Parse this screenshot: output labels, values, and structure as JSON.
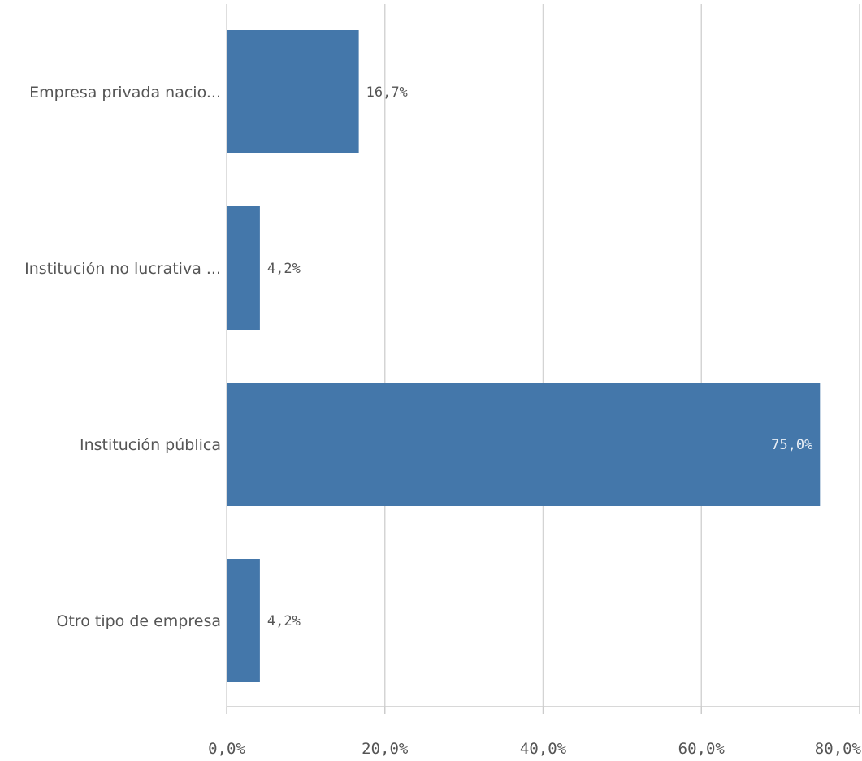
{
  "chart_data": {
    "type": "bar",
    "orientation": "horizontal",
    "categories": [
      "Empresa privada nacio...",
      "Institución no lucrativa ...",
      "Institución pública",
      "Otro tipo de empresa"
    ],
    "values": [
      16.7,
      4.2,
      75.0,
      4.2
    ],
    "data_labels": [
      "16,7%",
      "4,2%",
      "75,0%",
      "4,2%"
    ],
    "x_ticks": [
      0,
      20,
      40,
      60,
      80
    ],
    "x_tick_labels": [
      "0,0%",
      "20,0%",
      "40,0%",
      "60,0%",
      "80,0%"
    ],
    "xlim": [
      0,
      80
    ],
    "grid": true,
    "legend": "none",
    "colors": {
      "bar": "#4477aa",
      "grid": "#d4d4d4",
      "axis": "#cccccc",
      "text": "#555555",
      "label_inside": "#e8eef5"
    }
  }
}
